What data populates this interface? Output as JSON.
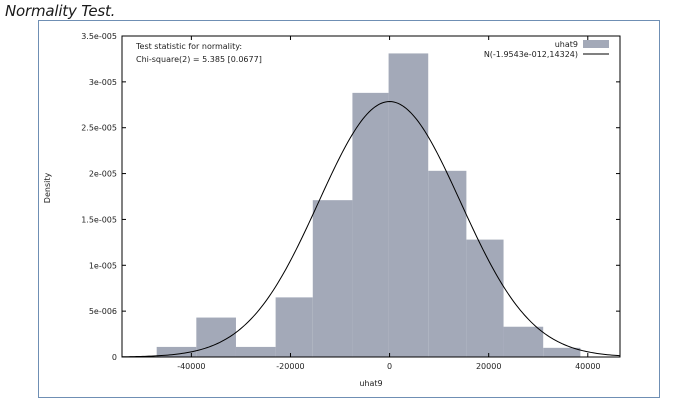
{
  "caption": "Normality Test.",
  "chart_data": {
    "type": "bar",
    "xlabel": "uhat9",
    "ylabel": "Density",
    "xlim": [
      -54000,
      46500
    ],
    "ylim": [
      0,
      3.5e-05
    ],
    "xticks": [
      -40000,
      -20000,
      0,
      20000,
      40000
    ],
    "xtick_labels": [
      "-40000",
      "-20000",
      "0",
      "20000",
      "40000"
    ],
    "yticks": [
      0,
      5e-06,
      1e-05,
      1.5e-05,
      2e-05,
      2.5e-05,
      3e-05,
      3.5e-05
    ],
    "ytick_labels": [
      "0",
      "5e-006",
      "1e-005",
      "1.5e-005",
      "2e-005",
      "2.5e-005",
      "3e-005",
      "3.5e-005"
    ],
    "grid": false,
    "annotation": {
      "line1": "Test statistic for normality:",
      "line2": "Chi-square(2) = 5.385 [0.0677]"
    },
    "legend": {
      "placement": "top-right",
      "entries": [
        {
          "label": "uhat9",
          "kind": "bar",
          "color": "#a3a9b8"
        },
        {
          "label": "N(-1.9543e-012,14324)",
          "kind": "line",
          "color": "#000000"
        }
      ]
    },
    "histogram": {
      "name": "uhat9",
      "color": "#a3a9b8",
      "bins": [
        {
          "x0": -47000,
          "x1": -39000,
          "density": 1.1e-06
        },
        {
          "x0": -39000,
          "x1": -31000,
          "density": 4.3e-06
        },
        {
          "x0": -31000,
          "x1": -23000,
          "density": 1.1e-06
        },
        {
          "x0": -23000,
          "x1": -15500,
          "density": 6.5e-06
        },
        {
          "x0": -15500,
          "x1": -7500,
          "density": 1.71e-05
        },
        {
          "x0": -7500,
          "x1": -200,
          "density": 2.88e-05
        },
        {
          "x0": -200,
          "x1": 7800,
          "density": 3.31e-05
        },
        {
          "x0": 7800,
          "x1": 15500,
          "density": 2.03e-05
        },
        {
          "x0": 15500,
          "x1": 23000,
          "density": 1.28e-05
        },
        {
          "x0": 23000,
          "x1": 31000,
          "density": 3.3e-06
        },
        {
          "x0": 31000,
          "x1": 38500,
          "density": 1e-06
        }
      ]
    },
    "normal_curve": {
      "name": "N(-1.9543e-012,14324)",
      "mean": -1.9543e-12,
      "sd": 14324,
      "color": "#000000"
    }
  }
}
